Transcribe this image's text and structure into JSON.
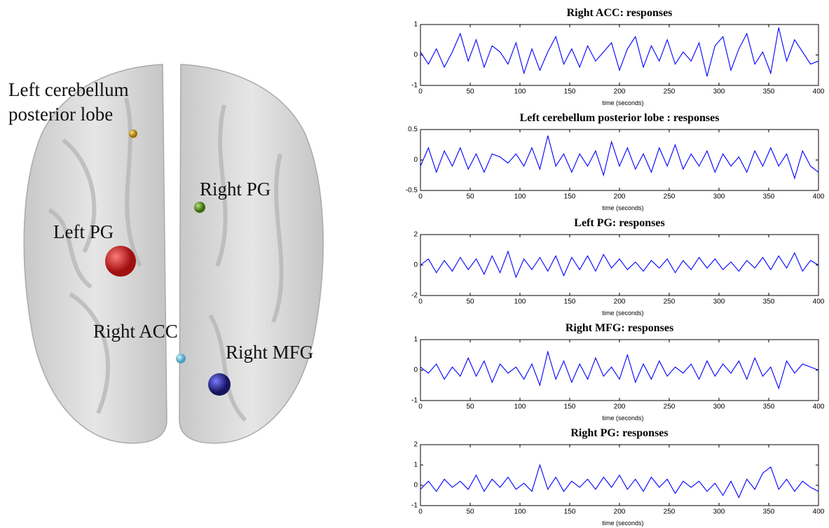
{
  "brain": {
    "labels": [
      "Left cerebellum",
      "posterior lobe",
      "Right PG",
      "Left PG",
      "Right ACC",
      "Right MFG"
    ]
  },
  "chart_data": [
    {
      "type": "line",
      "title": "Right ACC: responses",
      "xlabel": "time (seconds)",
      "color": "#0000ff",
      "x": [
        0,
        8,
        16,
        24,
        32,
        40,
        48,
        56,
        64,
        72,
        80,
        88,
        96,
        104,
        112,
        120,
        128,
        136,
        144,
        152,
        160,
        168,
        176,
        184,
        192,
        200,
        208,
        216,
        224,
        232,
        240,
        248,
        256,
        264,
        272,
        280,
        288,
        296,
        304,
        312,
        320,
        328,
        336,
        344,
        352,
        360,
        368,
        376,
        384,
        392,
        400
      ],
      "values": [
        0.1,
        -0.3,
        0.2,
        -0.4,
        0.1,
        0.7,
        -0.2,
        0.5,
        -0.4,
        0.3,
        0.1,
        -0.3,
        0.4,
        -0.6,
        0.2,
        -0.5,
        0.1,
        0.6,
        -0.3,
        0.2,
        -0.4,
        0.3,
        -0.2,
        0.1,
        0.4,
        -0.5,
        0.2,
        0.6,
        -0.4,
        0.3,
        -0.2,
        0.5,
        -0.3,
        0.1,
        -0.2,
        0.4,
        -0.7,
        0.3,
        0.6,
        -0.5,
        0.2,
        0.7,
        -0.3,
        0.1,
        -0.6,
        0.9,
        -0.2,
        0.5,
        0.1,
        -0.3,
        -0.2
      ],
      "xlim": [
        0,
        400
      ],
      "xticks": [
        0,
        50,
        100,
        150,
        200,
        250,
        300,
        350,
        400
      ],
      "ylim": [
        -1,
        1
      ],
      "yticks": [
        -1,
        0,
        1
      ]
    },
    {
      "type": "line",
      "title": "Left cerebellum posterior lobe : responses",
      "xlabel": "time (seconds)",
      "color": "#0000ff",
      "x": [
        0,
        8,
        16,
        24,
        32,
        40,
        48,
        56,
        64,
        72,
        80,
        88,
        96,
        104,
        112,
        120,
        128,
        136,
        144,
        152,
        160,
        168,
        176,
        184,
        192,
        200,
        208,
        216,
        224,
        232,
        240,
        248,
        256,
        264,
        272,
        280,
        288,
        296,
        304,
        312,
        320,
        328,
        336,
        344,
        352,
        360,
        368,
        376,
        384,
        392,
        400
      ],
      "values": [
        -0.1,
        0.2,
        -0.2,
        0.15,
        -0.1,
        0.2,
        -0.15,
        0.1,
        -0.2,
        0.1,
        0.05,
        -0.05,
        0.1,
        -0.1,
        0.2,
        -0.15,
        0.4,
        -0.1,
        0.1,
        -0.2,
        0.1,
        -0.1,
        0.15,
        -0.25,
        0.3,
        -0.1,
        0.2,
        -0.15,
        0.1,
        -0.2,
        0.2,
        -0.1,
        0.25,
        -0.15,
        0.1,
        -0.1,
        0.15,
        -0.2,
        0.1,
        -0.1,
        0.05,
        -0.2,
        0.15,
        -0.1,
        0.2,
        -0.1,
        0.1,
        -0.3,
        0.15,
        -0.1,
        -0.2
      ],
      "xlim": [
        0,
        400
      ],
      "xticks": [
        0,
        50,
        100,
        150,
        200,
        250,
        300,
        350,
        400
      ],
      "ylim": [
        -0.5,
        0.5
      ],
      "yticks": [
        -0.5,
        0,
        0.5
      ]
    },
    {
      "type": "line",
      "title": "Left PG: responses",
      "xlabel": "time (seconds)",
      "color": "#0000ff",
      "x": [
        0,
        8,
        16,
        24,
        32,
        40,
        48,
        56,
        64,
        72,
        80,
        88,
        96,
        104,
        112,
        120,
        128,
        136,
        144,
        152,
        160,
        168,
        176,
        184,
        192,
        200,
        208,
        216,
        224,
        232,
        240,
        248,
        256,
        264,
        272,
        280,
        288,
        296,
        304,
        312,
        320,
        328,
        336,
        344,
        352,
        360,
        368,
        376,
        384,
        392,
        400
      ],
      "values": [
        0,
        0.4,
        -0.5,
        0.3,
        -0.4,
        0.5,
        -0.3,
        0.4,
        -0.6,
        0.6,
        -0.5,
        0.9,
        -0.8,
        0.4,
        -0.3,
        0.5,
        -0.4,
        0.6,
        -0.7,
        0.5,
        -0.3,
        0.6,
        -0.4,
        0.7,
        -0.2,
        0.4,
        -0.3,
        0.2,
        -0.4,
        0.3,
        -0.2,
        0.4,
        -0.5,
        0.3,
        -0.3,
        0.5,
        -0.2,
        0.4,
        -0.3,
        0.2,
        -0.4,
        0.3,
        -0.2,
        0.5,
        -0.3,
        0.6,
        -0.2,
        0.8,
        -0.4,
        0.3,
        0
      ],
      "xlim": [
        0,
        400
      ],
      "xticks": [
        0,
        50,
        100,
        150,
        200,
        250,
        300,
        350,
        400
      ],
      "ylim": [
        -2,
        2
      ],
      "yticks": [
        -2,
        0,
        2
      ]
    },
    {
      "type": "line",
      "title": "Right MFG: responses",
      "xlabel": "time (seconds)",
      "color": "#0000ff",
      "x": [
        0,
        8,
        16,
        24,
        32,
        40,
        48,
        56,
        64,
        72,
        80,
        88,
        96,
        104,
        112,
        120,
        128,
        136,
        144,
        152,
        160,
        168,
        176,
        184,
        192,
        200,
        208,
        216,
        224,
        232,
        240,
        248,
        256,
        264,
        272,
        280,
        288,
        296,
        304,
        312,
        320,
        328,
        336,
        344,
        352,
        360,
        368,
        376,
        384,
        392,
        400
      ],
      "values": [
        0.1,
        -0.1,
        0.2,
        -0.3,
        0.1,
        -0.2,
        0.4,
        -0.2,
        0.3,
        -0.4,
        0.2,
        -0.1,
        0.1,
        -0.3,
        0.2,
        -0.5,
        0.6,
        -0.3,
        0.3,
        -0.4,
        0.2,
        -0.3,
        0.4,
        -0.2,
        0.1,
        -0.3,
        0.5,
        -0.4,
        0.2,
        -0.3,
        0.3,
        -0.2,
        0.1,
        -0.1,
        0.2,
        -0.3,
        0.3,
        -0.2,
        0.2,
        -0.1,
        0.3,
        -0.3,
        0.4,
        -0.2,
        0.1,
        -0.6,
        0.3,
        -0.1,
        0.2,
        0.1,
        0
      ],
      "xlim": [
        0,
        400
      ],
      "xticks": [
        0,
        50,
        100,
        150,
        200,
        250,
        300,
        350,
        400
      ],
      "ylim": [
        -1,
        1
      ],
      "yticks": [
        -1,
        0,
        1
      ]
    },
    {
      "type": "line",
      "title": "Right PG: responses",
      "xlabel": "time (seconds)",
      "color": "#0000ff",
      "x": [
        0,
        8,
        16,
        24,
        32,
        40,
        48,
        56,
        64,
        72,
        80,
        88,
        96,
        104,
        112,
        120,
        128,
        136,
        144,
        152,
        160,
        168,
        176,
        184,
        192,
        200,
        208,
        216,
        224,
        232,
        240,
        248,
        256,
        264,
        272,
        280,
        288,
        296,
        304,
        312,
        320,
        328,
        336,
        344,
        352,
        360,
        368,
        376,
        384,
        392,
        400
      ],
      "values": [
        -0.2,
        0.2,
        -0.3,
        0.3,
        -0.1,
        0.2,
        -0.2,
        0.5,
        -0.3,
        0.3,
        -0.1,
        0.4,
        -0.2,
        0.1,
        -0.3,
        1.0,
        -0.2,
        0.4,
        -0.3,
        0.2,
        -0.1,
        0.3,
        -0.2,
        0.4,
        -0.1,
        0.5,
        -0.2,
        0.3,
        -0.3,
        0.4,
        -0.1,
        0.3,
        -0.4,
        0.2,
        -0.1,
        0.2,
        -0.3,
        0.1,
        -0.5,
        0.2,
        -0.6,
        0.3,
        -0.2,
        0.6,
        0.9,
        -0.2,
        0.3,
        -0.3,
        0.2,
        -0.1,
        -0.3
      ],
      "xlim": [
        0,
        400
      ],
      "xticks": [
        0,
        50,
        100,
        150,
        200,
        250,
        300,
        350,
        400
      ],
      "ylim": [
        -1,
        2
      ],
      "yticks": [
        -1,
        0,
        1,
        2
      ]
    }
  ]
}
